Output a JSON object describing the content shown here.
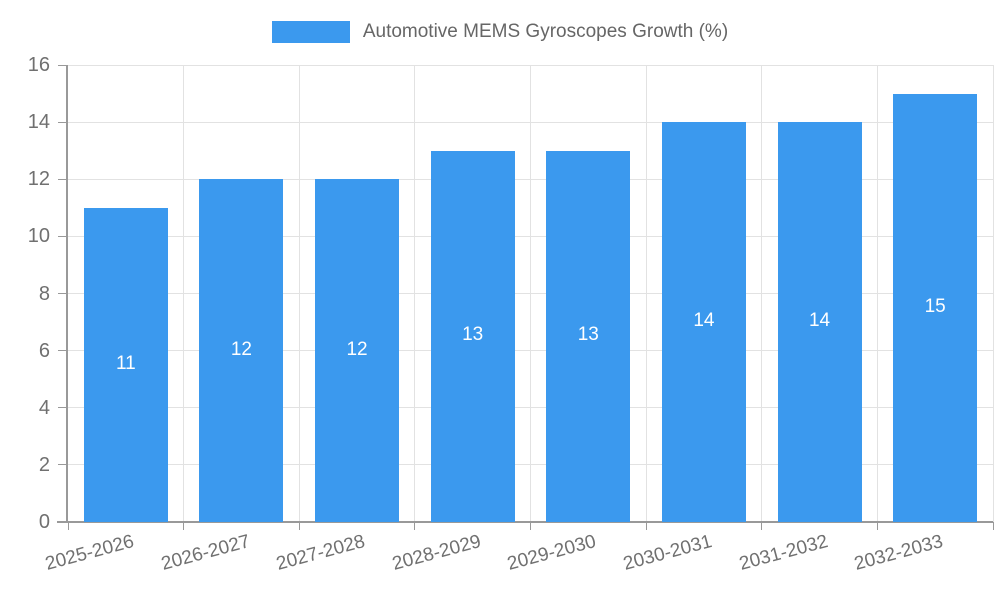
{
  "legend": {
    "label": "Automotive MEMS Gyroscopes Growth (%)"
  },
  "chart_data": {
    "type": "bar",
    "title": "Automotive MEMS Gyroscopes Growth (%)",
    "categories": [
      "2025-2026",
      "2026-2027",
      "2027-2028",
      "2028-2029",
      "2029-2030",
      "2030-2031",
      "2031-2032",
      "2032-2033"
    ],
    "values": [
      11,
      12,
      12,
      13,
      13,
      14,
      14,
      15
    ],
    "xlabel": "",
    "ylabel": "",
    "ylim": [
      0,
      16
    ],
    "ytick_step": 2,
    "ytick_labels": [
      "0",
      "2",
      "4",
      "6",
      "8",
      "10",
      "12",
      "14",
      "16"
    ],
    "grid": true,
    "legend_position": "top-center",
    "value_label_position": "inside-center",
    "colors": {
      "bar": "#3B99EE",
      "grid": "#E2E2E2",
      "axis": "#999999",
      "tick": "#999999",
      "axis_label": "#707070",
      "title": "#666666",
      "value_label": "#FFFFFF",
      "background": "#FFFFFF"
    }
  }
}
